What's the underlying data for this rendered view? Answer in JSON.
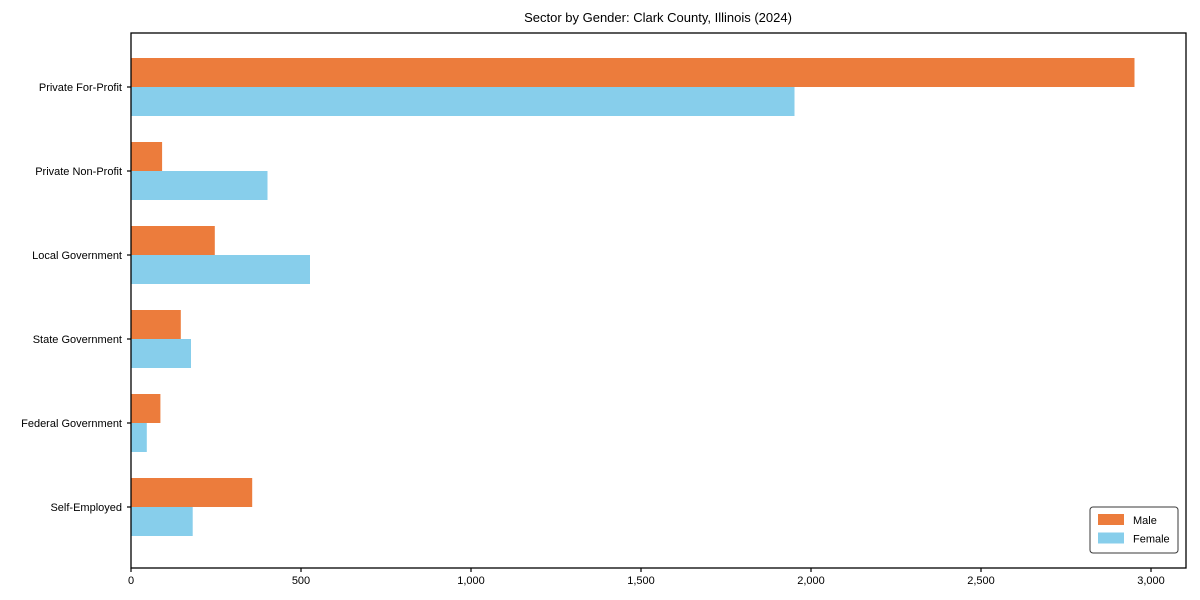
{
  "chart_data": {
    "type": "bar",
    "orientation": "horizontal",
    "title": "Sector by Gender: Clark County, Illinois (2024)",
    "categories": [
      "Private For-Profit",
      "Private Non-Profit",
      "Local Government",
      "State Government",
      "Federal Government",
      "Self-Employed"
    ],
    "series": [
      {
        "name": "Male",
        "color": "#ec7c3c",
        "values": [
          2950,
          90,
          245,
          145,
          85,
          355
        ]
      },
      {
        "name": "Female",
        "color": "#87ceeb",
        "values": [
          1950,
          400,
          525,
          175,
          45,
          180
        ]
      }
    ],
    "xticks": [
      0,
      500,
      1000,
      1500,
      2000,
      2500,
      3000
    ],
    "xtick_labels": [
      "0",
      "500",
      "1,000",
      "1,500",
      "2,000",
      "2,500",
      "3,000"
    ],
    "xlim": [
      0,
      3100
    ],
    "xlabel": "",
    "ylabel": "",
    "grid": false,
    "legend": {
      "position": "lower right",
      "labels": [
        "Male",
        "Female"
      ]
    }
  },
  "colors": {
    "background": "#ffffff",
    "spine": "#000000",
    "text": "#000000",
    "legend_border": "#3a3a3a",
    "legend_fill": "#ffffff"
  }
}
